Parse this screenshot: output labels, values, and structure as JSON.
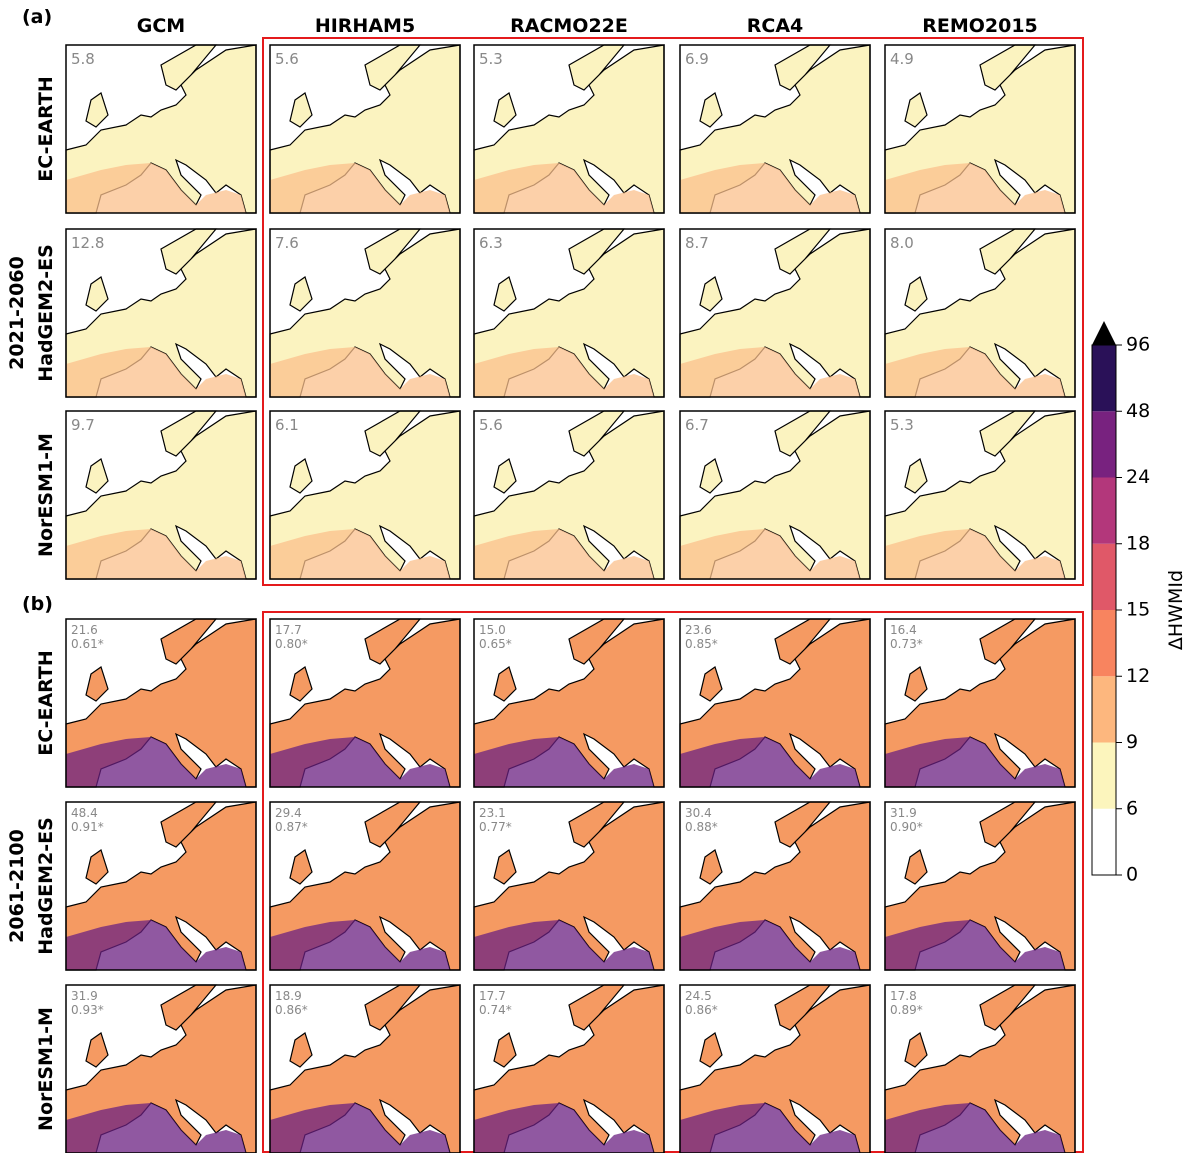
{
  "panel_labels": [
    "(a)",
    "(b)"
  ],
  "columns": [
    "GCM",
    "HIRHAM5",
    "RACMO22E",
    "RCA4",
    "REMO2015"
  ],
  "periods": [
    "2021-2060",
    "2061-2100"
  ],
  "rows": [
    "EC-EARTH",
    "HadGEM2-ES",
    "NorESM1-M"
  ],
  "panels": [
    [
      [
        [
          "5.8"
        ],
        [
          "5.6"
        ],
        [
          "5.3"
        ],
        [
          "6.9"
        ],
        [
          "4.9"
        ]
      ],
      [
        [
          "12.8"
        ],
        [
          "7.6"
        ],
        [
          "6.3"
        ],
        [
          "8.7"
        ],
        [
          "8.0"
        ]
      ],
      [
        [
          "9.7"
        ],
        [
          "6.1"
        ],
        [
          "5.6"
        ],
        [
          "6.7"
        ],
        [
          "5.3"
        ]
      ]
    ],
    [
      [
        [
          "21.6",
          "0.61*"
        ],
        [
          "17.7",
          "0.80*"
        ],
        [
          "15.0",
          "0.65*"
        ],
        [
          "23.6",
          "0.85*"
        ],
        [
          "16.4",
          "0.73*"
        ]
      ],
      [
        [
          "48.4",
          "0.91*"
        ],
        [
          "29.4",
          "0.87*"
        ],
        [
          "23.1",
          "0.77*"
        ],
        [
          "30.4",
          "0.88*"
        ],
        [
          "31.9",
          "0.90*"
        ]
      ],
      [
        [
          "31.9",
          "0.93*"
        ],
        [
          "18.9",
          "0.86*"
        ],
        [
          "17.7",
          "0.74*"
        ],
        [
          "24.5",
          "0.86*"
        ],
        [
          "17.8",
          "0.89*"
        ]
      ]
    ]
  ],
  "colorbar": {
    "label": "ΔHWMId",
    "ticks": [
      0,
      6,
      9,
      12,
      15,
      18,
      24,
      48,
      96
    ],
    "colors": [
      "#ffffff",
      "#fcf5bd",
      "#fdb77e",
      "#f8845f",
      "#e05868",
      "#b3377b",
      "#78227f",
      "#2a1158"
    ],
    "extend_color": "#000000"
  }
}
